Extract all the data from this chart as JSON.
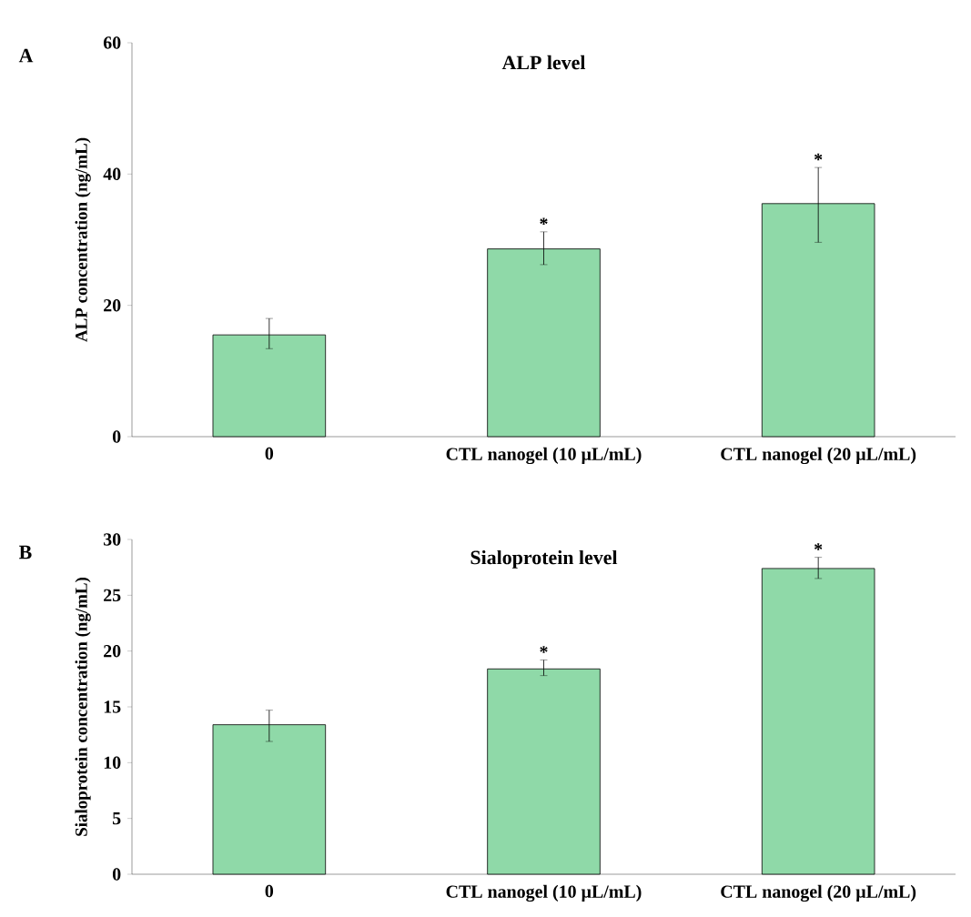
{
  "chart_data": [
    {
      "type": "bar",
      "title": "ALP level",
      "ylabel": "ALP concentration (ng/mL)",
      "categories": [
        "0",
        "CTL nanogel (10 µL/mL)",
        "CTL nanogel (20 µL/mL)"
      ],
      "values": [
        15.5,
        28.6,
        35.5
      ],
      "color": "#8fd9a8",
      "errors": [
        [
          13.4,
          18.0
        ],
        [
          26.2,
          31.2
        ],
        [
          29.6,
          41.0
        ]
      ],
      "ylim": [
        0,
        60
      ],
      "yticks": [
        0,
        20,
        40,
        60
      ],
      "annotations": [
        "A",
        {
          "text": "*",
          "x": "CTL nanogel (10 µL/mL)",
          "y": 31.2
        },
        {
          "text": "*",
          "x": "CTL nanogel (20 µL/mL)",
          "y": 41.0
        }
      ]
    },
    {
      "type": "bar",
      "title": "Sialoprotein level",
      "ylabel": "Sialoprotein concentration (ng/mL)",
      "categories": [
        "0",
        "CTL nanogel (10 µL/mL)",
        "CTL nanogel (20 µL/mL)"
      ],
      "values": [
        13.4,
        18.4,
        27.4
      ],
      "color": "#8fd9a8",
      "errors": [
        [
          11.9,
          14.7
        ],
        [
          17.8,
          19.2
        ],
        [
          26.5,
          28.4
        ]
      ],
      "ylim": [
        0,
        30
      ],
      "yticks": [
        0,
        5,
        10,
        15,
        20,
        25,
        30
      ],
      "annotations": [
        "B",
        {
          "text": "*",
          "x": "CTL nanogel (10 µL/mL)",
          "y": 19.2
        },
        {
          "text": "*",
          "x": "CTL nanogel (20 µL/mL)",
          "y": 28.4
        }
      ]
    }
  ]
}
